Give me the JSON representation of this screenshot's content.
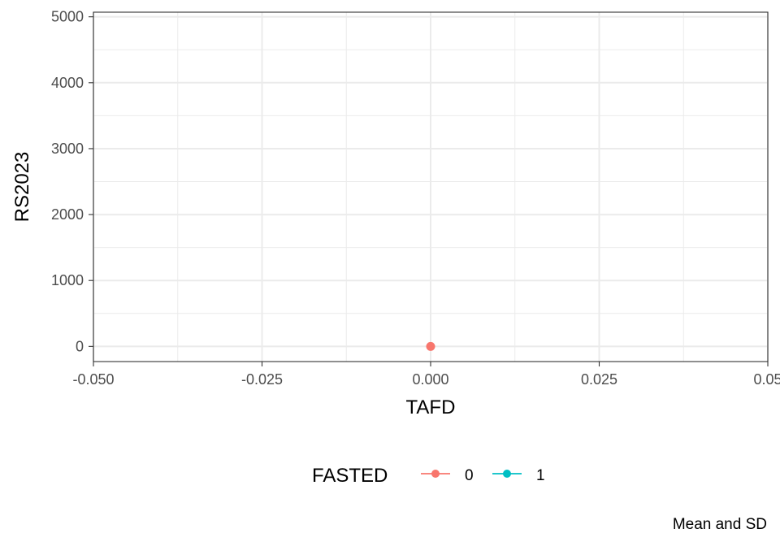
{
  "chart_data": {
    "type": "line",
    "title": "",
    "xlabel": "TAFD",
    "ylabel": "RS2023",
    "xlim": [
      -0.05,
      0.05
    ],
    "ylim": [
      -230,
      5070
    ],
    "x_ticks": [
      -0.05,
      -0.025,
      0,
      0.025,
      0.05
    ],
    "x_tick_labels": [
      "-0.050",
      "-0.025",
      "0.000",
      "0.025",
      "0.05"
    ],
    "y_ticks": [
      0,
      1000,
      2000,
      3000,
      4000,
      5000
    ],
    "y_tick_labels": [
      "0",
      "1000",
      "2000",
      "3000",
      "4000",
      "5000"
    ],
    "grid": true,
    "legend": {
      "title": "FASTED",
      "placement": "bottom",
      "entries": [
        "0",
        "1"
      ]
    },
    "series": [
      {
        "name": "0",
        "color": "#F8766D",
        "points": [
          {
            "x": 0,
            "y": 0
          }
        ]
      },
      {
        "name": "1",
        "color": "#00BFC4",
        "points": []
      }
    ],
    "caption": "Mean and SD"
  }
}
